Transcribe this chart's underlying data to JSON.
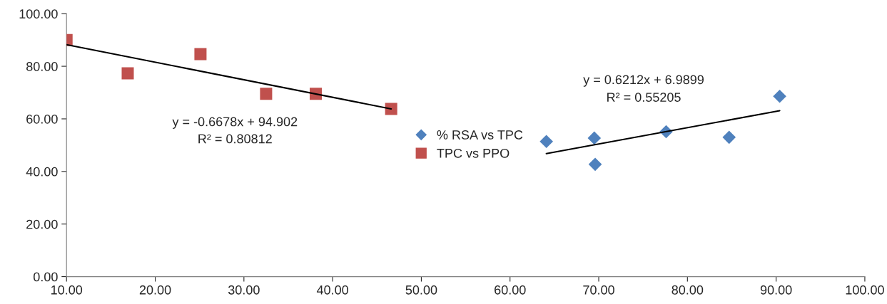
{
  "chart_data": {
    "type": "scatter",
    "series": [
      {
        "name": "% RSA vs TPC",
        "color": "#4f81bd",
        "marker": "diamond",
        "x": [
          64.1,
          69.5,
          69.6,
          77.6,
          84.7,
          90.4
        ],
        "values": [
          51.4,
          52.7,
          42.7,
          55.1,
          53.0,
          68.6
        ]
      },
      {
        "name": "TPC vs PPO",
        "color": "#c0504d",
        "marker": "square",
        "x": [
          10.0,
          16.9,
          25.1,
          32.5,
          38.1,
          46.6
        ],
        "values": [
          90.0,
          77.3,
          84.6,
          69.5,
          69.5,
          63.8
        ]
      },
      {
        "type": "line",
        "color": "#000000",
        "x": [
          10.0,
          46.6
        ],
        "values": [
          88.2,
          63.8
        ]
      },
      {
        "type": "line",
        "color": "#000000",
        "x": [
          64.1,
          90.4
        ],
        "values": [
          46.8,
          63.1
        ]
      }
    ],
    "annotations": [
      "y = -0.6678x + 94.902",
      "R² = 0.80812",
      "y = 0.6212x + 6.9899",
      "R² = 0.55205"
    ],
    "xlim": [
      10,
      100
    ],
    "xticks": [
      {
        "value": 10,
        "label": "10.00"
      },
      {
        "value": 20,
        "label": "20.00"
      },
      {
        "value": 30,
        "label": "30.00"
      },
      {
        "value": 40,
        "label": "40.00"
      },
      {
        "value": 50,
        "label": "50.00"
      },
      {
        "value": 60,
        "label": "60.00"
      },
      {
        "value": 70,
        "label": "70.00"
      },
      {
        "value": 80,
        "label": "80.00"
      },
      {
        "value": 90,
        "label": "90.00"
      },
      {
        "value": 100,
        "label": "100.00"
      }
    ],
    "ylim": [
      0,
      100
    ],
    "yticks": [
      {
        "value": 0,
        "label": "0.00"
      },
      {
        "value": 20,
        "label": "20.00"
      },
      {
        "value": 40,
        "label": "40.00"
      },
      {
        "value": 60,
        "label": "60.00"
      },
      {
        "value": 80,
        "label": "80.00"
      },
      {
        "value": 100,
        "label": "100.00"
      }
    ],
    "legend": "center",
    "grid": false
  }
}
